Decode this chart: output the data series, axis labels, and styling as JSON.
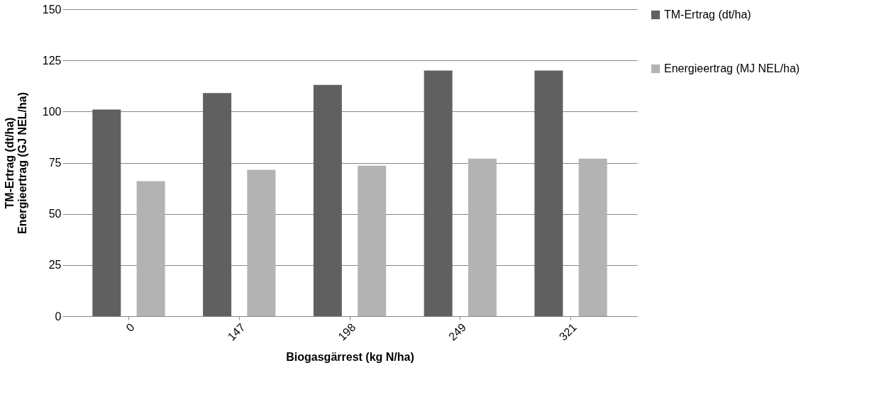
{
  "chart_data": {
    "type": "bar",
    "xlabel": "Biogasgärrest (kg N/ha)",
    "ylabel": "TM-Ertrag (dt/ha)\nEnergieertrag (GJ NEL/ha)",
    "categories": [
      "0",
      "147",
      "198",
      "249",
      "321"
    ],
    "series": [
      {
        "name": "TM-Ertrag (dt/ha)",
        "color": "#606060",
        "values": [
          101,
          109,
          113,
          120,
          120
        ]
      },
      {
        "name": "Energieertrag (MJ NEL/ha)",
        "color": "#b3b3b3",
        "values": [
          66,
          71.5,
          73.5,
          77,
          77
        ]
      }
    ],
    "ylim": [
      0,
      150
    ],
    "yticks": [
      0,
      25,
      50,
      75,
      100,
      125,
      150
    ],
    "grid": "y",
    "legend": "right"
  }
}
